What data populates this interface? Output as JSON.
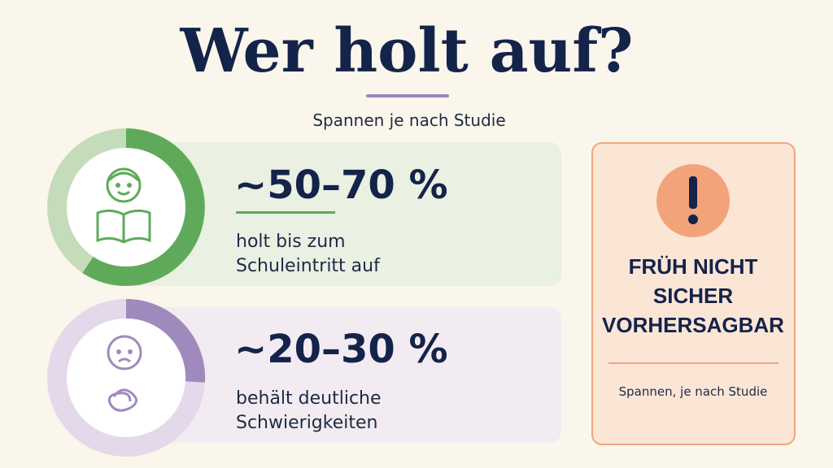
{
  "header": {
    "title": "Wer holt auf?",
    "subtitle": "Spannen je nach Studie"
  },
  "cards": [
    {
      "value": "~50–70 %",
      "text": [
        "holt bis zum",
        "Schuleintritt auf"
      ]
    },
    {
      "value": "~20–30 %",
      "text": [
        "behält deutliche",
        "Schwierigkeiten"
      ]
    }
  ],
  "warning": {
    "title": [
      "FRÜH NICHT",
      "SICHER",
      "VORHERSAGBAR"
    ],
    "note": "Spannen, je nach Studie"
  }
}
